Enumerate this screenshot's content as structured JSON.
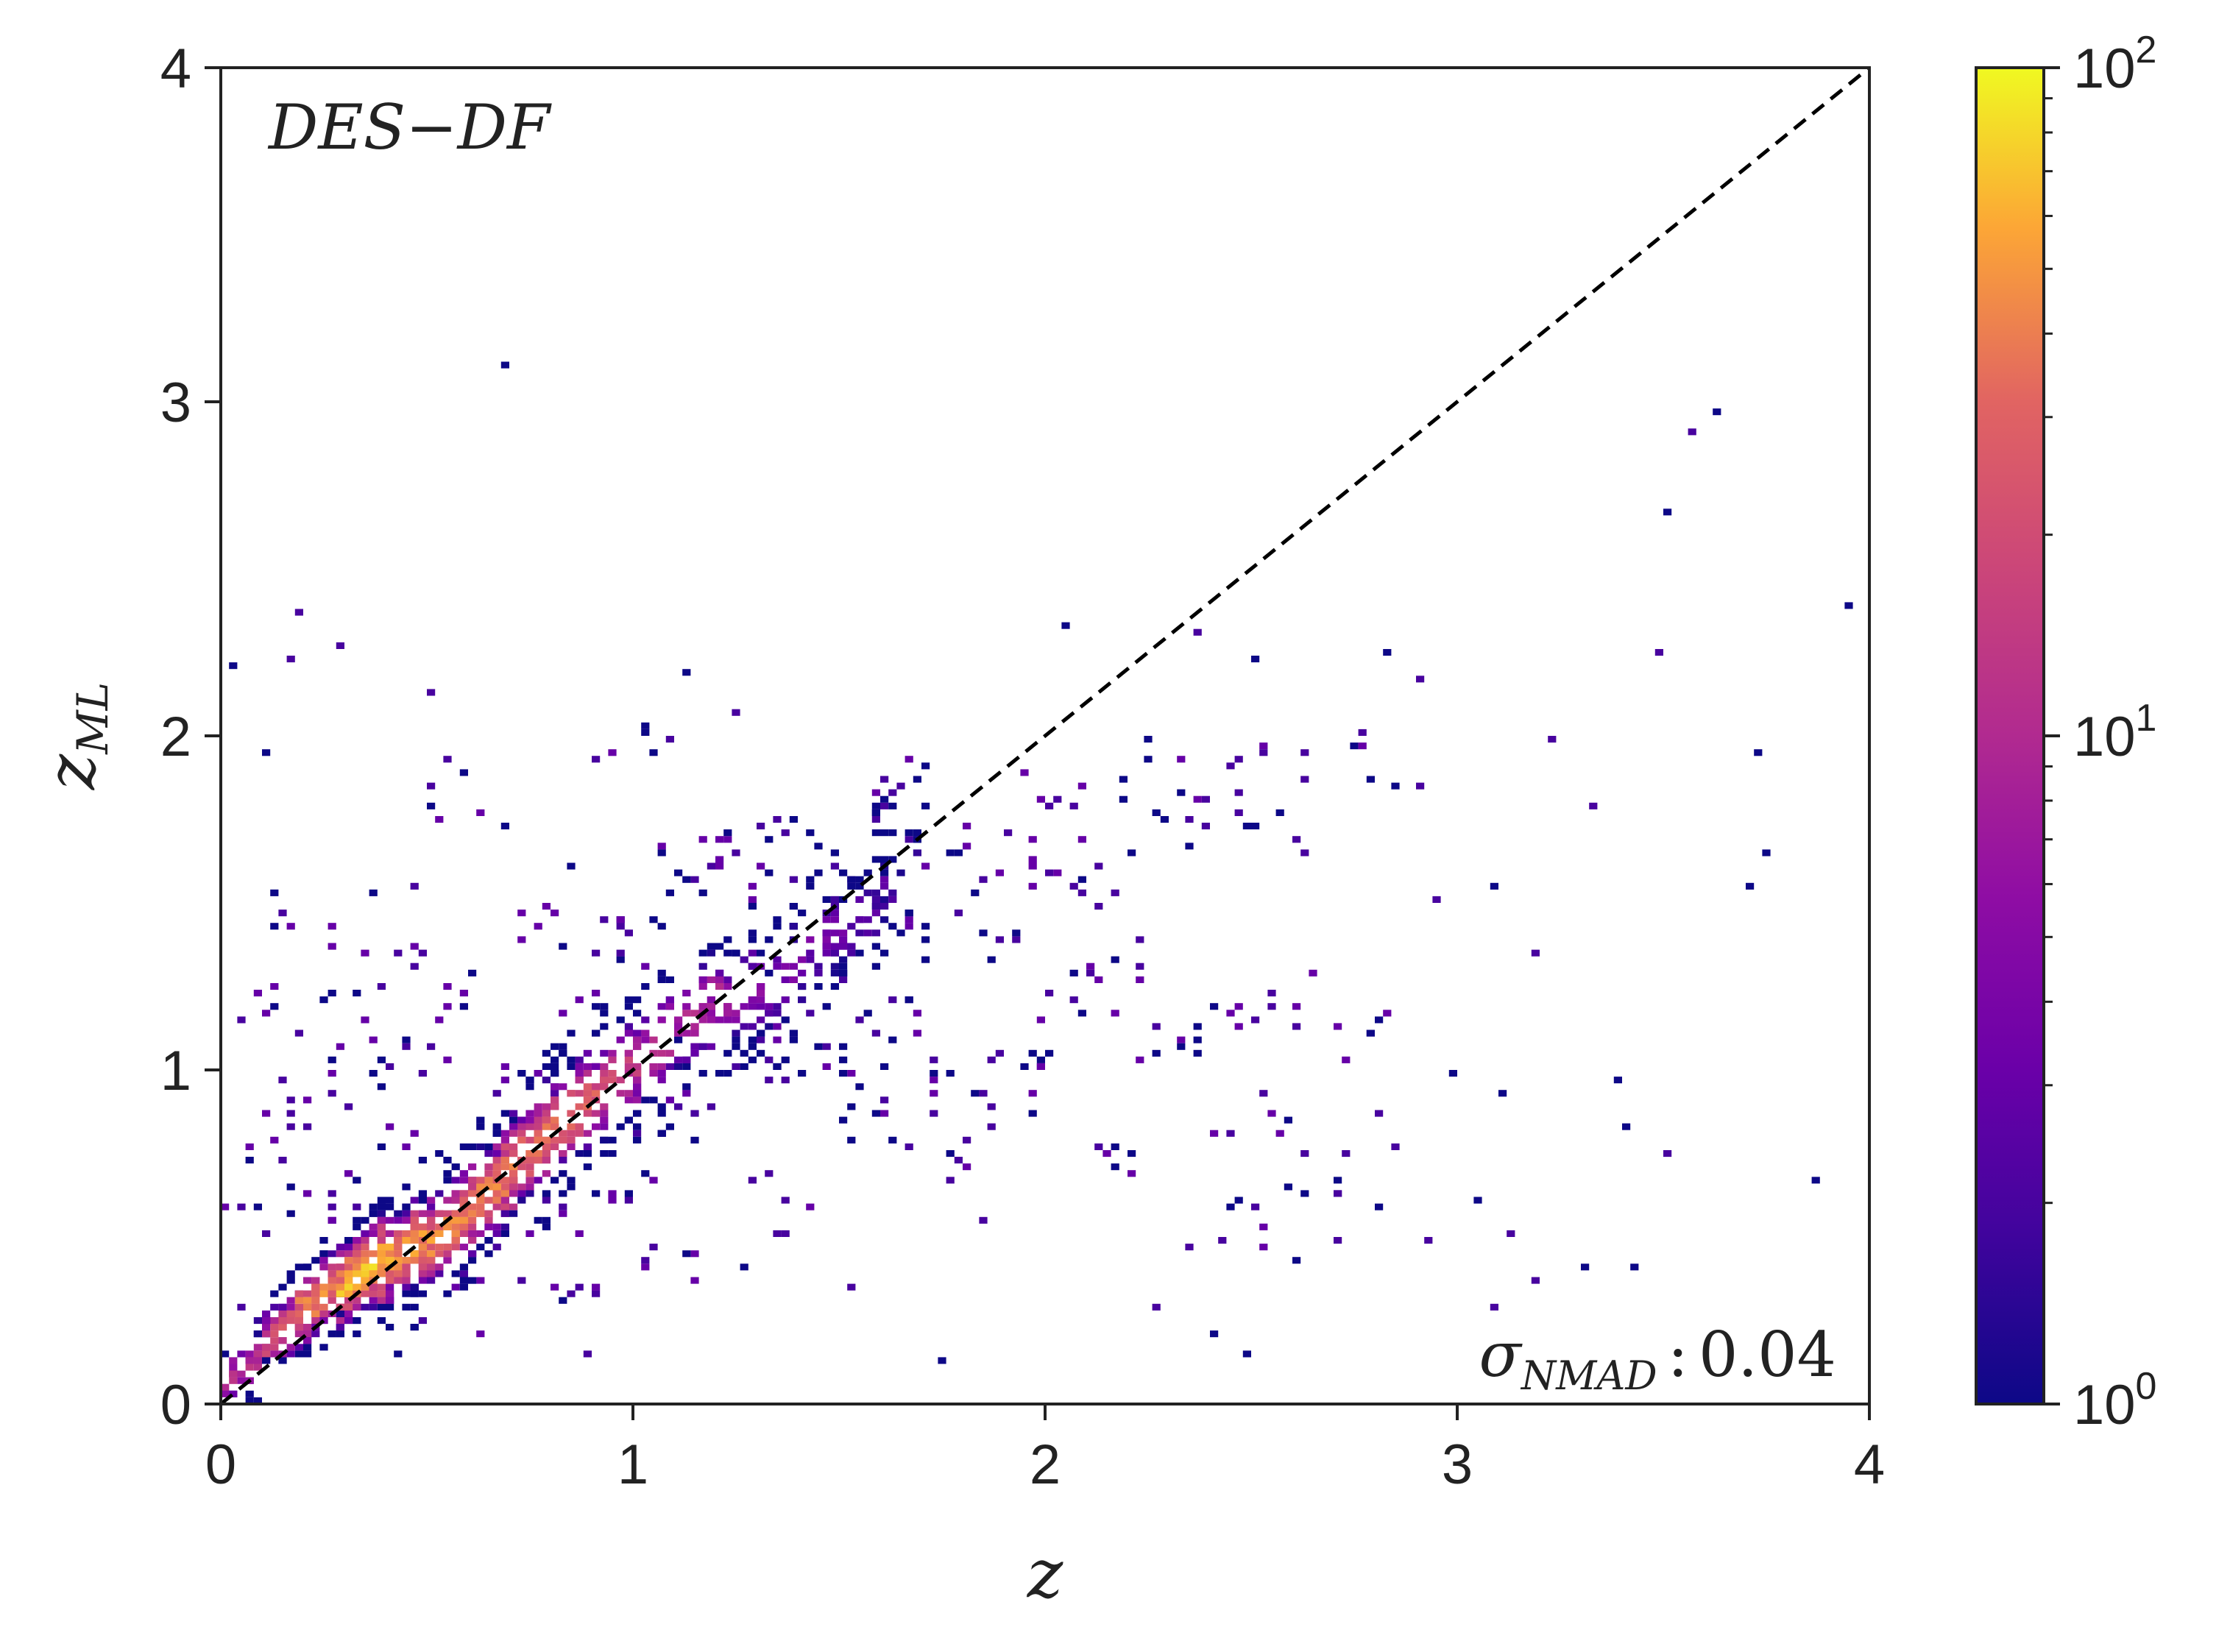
{
  "chart_data": [
    {
      "type": "heatmap",
      "kind": "2d-histogram",
      "annotation_label": "DES−DF",
      "xlabel": "z",
      "ylabel": "z",
      "ylabel_subscript": "ML",
      "xlim": [
        0,
        4
      ],
      "ylim": [
        0,
        4
      ],
      "x_ticks": [
        "0",
        "1",
        "2",
        "3",
        "4"
      ],
      "y_ticks": [
        "0",
        "1",
        "2",
        "3",
        "4"
      ],
      "reference_line": {
        "style": "dashed",
        "color": "#000000",
        "from": [
          0,
          0
        ],
        "to": [
          4,
          4
        ]
      },
      "stat_symbol": "σ",
      "stat_subscript": "NMAD",
      "stat_separator": ":",
      "stat_value": "0.04",
      "colormap": "plasma",
      "color_scale": "log",
      "color_range": [
        1,
        100
      ],
      "colorbar_ticks": [
        {
          "base": "10",
          "exp": "0",
          "value": 1
        },
        {
          "base": "10",
          "exp": "1",
          "value": 10
        },
        {
          "base": "10",
          "exp": "2",
          "value": 100
        }
      ],
      "dense_ridge": [
        {
          "x": 0.05,
          "y": 0.1,
          "count": 12
        },
        {
          "x": 0.15,
          "y": 0.22,
          "count": 25
        },
        {
          "x": 0.25,
          "y": 0.33,
          "count": 45
        },
        {
          "x": 0.35,
          "y": 0.4,
          "count": 80
        },
        {
          "x": 0.45,
          "y": 0.46,
          "count": 55
        },
        {
          "x": 0.55,
          "y": 0.52,
          "count": 50
        },
        {
          "x": 0.65,
          "y": 0.63,
          "count": 45
        },
        {
          "x": 0.75,
          "y": 0.76,
          "count": 40
        },
        {
          "x": 0.85,
          "y": 0.87,
          "count": 35
        },
        {
          "x": 0.95,
          "y": 0.96,
          "count": 20
        },
        {
          "x": 1.05,
          "y": 1.06,
          "count": 12
        },
        {
          "x": 1.15,
          "y": 1.17,
          "count": 10
        },
        {
          "x": 1.25,
          "y": 1.22,
          "count": 8
        },
        {
          "x": 1.35,
          "y": 1.27,
          "count": 5
        },
        {
          "x": 1.45,
          "y": 1.38,
          "count": 4
        },
        {
          "x": 1.55,
          "y": 1.45,
          "count": 3
        },
        {
          "x": 1.65,
          "y": 1.55,
          "count": 2
        }
      ],
      "outliers": [
        [
          0.69,
          3.1
        ],
        [
          3.62,
          2.97
        ],
        [
          3.56,
          2.91
        ],
        [
          3.51,
          2.66
        ],
        [
          3.95,
          2.39
        ],
        [
          0.18,
          2.38
        ],
        [
          0.29,
          2.28
        ],
        [
          0.02,
          2.2
        ],
        [
          0.17,
          2.23
        ],
        [
          0.51,
          2.13
        ],
        [
          1.14,
          2.19
        ],
        [
          2.04,
          2.34
        ],
        [
          2.38,
          2.31
        ],
        [
          2.5,
          2.23
        ],
        [
          2.82,
          2.25
        ],
        [
          2.91,
          2.17
        ],
        [
          3.49,
          2.25
        ],
        [
          3.23,
          1.99
        ],
        [
          3.33,
          1.78
        ],
        [
          3.72,
          1.94
        ],
        [
          3.75,
          1.64
        ],
        [
          3.71,
          1.55
        ],
        [
          2.95,
          1.5
        ],
        [
          3.08,
          1.54
        ],
        [
          3.18,
          1.35
        ],
        [
          2.85,
          1.84
        ],
        [
          2.9,
          1.84
        ],
        [
          0.37,
          1.53
        ],
        [
          0.1,
          1.95
        ],
        [
          0.46,
          1.54
        ],
        [
          1.24,
          2.06
        ],
        [
          0.85,
          1.6
        ],
        [
          0.55,
          1.92
        ],
        [
          2.98,
          0.99
        ],
        [
          3.1,
          0.94
        ],
        [
          2.8,
          0.87
        ],
        [
          3.38,
          0.96
        ],
        [
          3.4,
          0.83
        ],
        [
          3.51,
          0.75
        ],
        [
          3.87,
          0.66
        ],
        [
          2.85,
          0.76
        ],
        [
          3.3,
          0.4
        ],
        [
          3.05,
          0.6
        ],
        [
          3.42,
          0.4
        ],
        [
          2.92,
          0.48
        ],
        [
          3.18,
          0.37
        ],
        [
          3.08,
          0.28
        ],
        [
          2.7,
          0.48
        ],
        [
          2.6,
          0.43
        ],
        [
          2.4,
          0.2
        ],
        [
          2.48,
          0.14
        ],
        [
          2.28,
          0.28
        ],
        [
          1.74,
          0.12
        ],
        [
          1.52,
          0.35
        ],
        [
          1.26,
          0.4
        ],
        [
          0.88,
          0.15
        ],
        [
          0.48,
          0.25
        ],
        [
          0.42,
          0.15
        ],
        [
          0.1,
          0.12
        ],
        [
          0.05,
          0.28
        ],
        [
          1.84,
          0.54
        ],
        [
          2.35,
          0.47
        ],
        [
          2.62,
          0.62
        ],
        [
          2.8,
          0.59
        ],
        [
          3.13,
          0.51
        ]
      ],
      "scattered_bins": [
        [
          0.05,
          0.55
        ],
        [
          0.1,
          0.8
        ],
        [
          0.12,
          1.2
        ],
        [
          0.2,
          0.9
        ],
        [
          0.2,
          1.45
        ],
        [
          0.25,
          0.62
        ],
        [
          0.3,
          1.15
        ],
        [
          0.35,
          0.95
        ],
        [
          0.4,
          1.3
        ],
        [
          0.45,
          0.75
        ],
        [
          0.5,
          1.05
        ],
        [
          0.55,
          0.3
        ],
        [
          0.6,
          1.2
        ],
        [
          0.65,
          0.45
        ],
        [
          0.7,
          0.95
        ],
        [
          0.75,
          1.4
        ],
        [
          0.8,
          0.55
        ],
        [
          0.85,
          1.25
        ],
        [
          0.9,
          0.6
        ],
        [
          0.95,
          1.4
        ],
        [
          1.0,
          0.75
        ],
        [
          1.05,
          1.5
        ],
        [
          1.1,
          0.85
        ],
        [
          1.15,
          1.6
        ],
        [
          1.2,
          1.0
        ],
        [
          1.25,
          1.55
        ],
        [
          1.3,
          1.1
        ],
        [
          1.35,
          1.7
        ],
        [
          1.4,
          1.05
        ],
        [
          1.45,
          1.55
        ],
        [
          1.5,
          0.95
        ],
        [
          1.55,
          1.75
        ],
        [
          1.6,
          1.2
        ],
        [
          1.65,
          1.85
        ],
        [
          1.7,
          1.05
        ],
        [
          1.75,
          1.6
        ],
        [
          1.8,
          0.9
        ],
        [
          1.85,
          1.4
        ],
        [
          1.9,
          1.65
        ],
        [
          1.95,
          1.1
        ],
        [
          2.0,
          1.8
        ],
        [
          2.05,
          1.55
        ],
        [
          2.1,
          1.25
        ],
        [
          2.15,
          1.6
        ],
        [
          2.2,
          1.35
        ],
        [
          2.25,
          1.9
        ],
        [
          2.3,
          1.05
        ],
        [
          2.35,
          1.75
        ],
        [
          2.4,
          1.15
        ],
        [
          2.45,
          1.9
        ],
        [
          2.5,
          0.9
        ],
        [
          2.55,
          1.7
        ],
        [
          2.6,
          1.2
        ],
        [
          2.65,
          0.7
        ],
        [
          2.7,
          1.95
        ],
        [
          2.75,
          1.1
        ],
        [
          1.0,
          1.97
        ],
        [
          0.6,
          1.8
        ],
        [
          0.3,
          0.55
        ],
        [
          1.2,
          1.65
        ],
        [
          1.4,
          1.25
        ],
        [
          1.6,
          1.5
        ],
        [
          0.85,
          0.35
        ],
        [
          1.1,
          0.45
        ],
        [
          1.35,
          0.6
        ],
        [
          1.55,
          0.85
        ],
        [
          1.75,
          0.7
        ],
        [
          1.95,
          0.95
        ],
        [
          2.15,
          0.75
        ],
        [
          2.45,
          0.55
        ]
      ]
    }
  ]
}
